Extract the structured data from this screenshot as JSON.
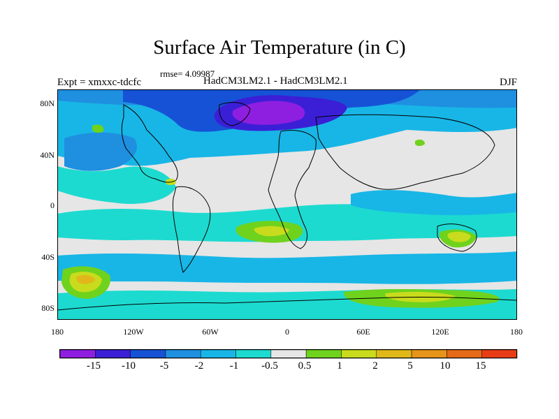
{
  "header": {
    "title": "Surface Air Temperature (in C)",
    "rmse": "rmse= 4.09987",
    "experiment": "Expt = xmxxc-tdcfc",
    "models": "HadCM3LM2.1 - HadCM3LM2.1",
    "season": "DJF"
  },
  "axes": {
    "lat_ticks": [
      "80N",
      "40N",
      "0",
      "40S",
      "80S"
    ],
    "lon_ticks": [
      "180",
      "120W",
      "60W",
      "0",
      "60E",
      "120E",
      "180"
    ]
  },
  "colorbar": {
    "colors": [
      "#8f1fe0",
      "#3b1fd6",
      "#1652d6",
      "#1f8fe0",
      "#18b6e6",
      "#1ddad0",
      "#e6e6e6",
      "#6fd21d",
      "#c8dc1d",
      "#e0b81a",
      "#e6941a",
      "#e46a18",
      "#e83c16"
    ],
    "labels": [
      "-15",
      "-10",
      "-5",
      "-2",
      "-1",
      "-0.5",
      "0.5",
      "1",
      "2",
      "5",
      "10",
      "15"
    ]
  },
  "map_regions": {
    "background": "#e6e6e6",
    "strong_cold": "#3b1fd6",
    "very_cold": "#8f1fe0",
    "cool": "#1f8fe0",
    "mild_cool": "#18b6e6",
    "teal": "#1ddad0",
    "warm": "#6fd21d",
    "warmer": "#c8dc1d",
    "hot": "#e0b81a"
  }
}
